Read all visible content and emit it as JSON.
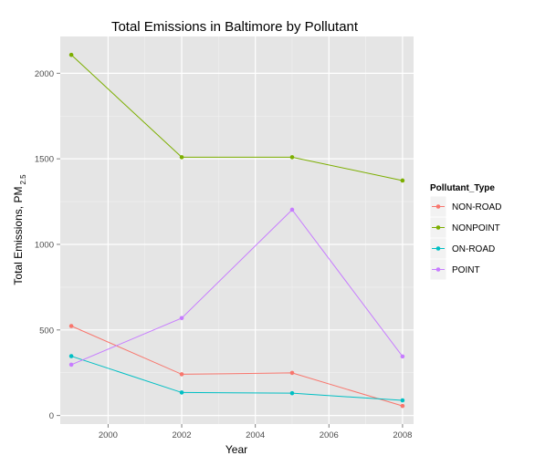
{
  "colors": {
    "panel": "#e5e5e5",
    "grid_major": "#ffffff",
    "grid_minor": "#f2f2f2",
    "legend_key_bg": "#f2f2f2"
  },
  "chart_data": {
    "type": "line",
    "title": "Total Emissions in Baltimore by Pollutant",
    "xlabel": "Year",
    "ylabel": "Total Emissions, PM",
    "ylabel_subscript": "2.5",
    "x": [
      1999,
      2002,
      2005,
      2008
    ],
    "xlim": [
      1998.7,
      2008.3
    ],
    "ylim": [
      -50,
      2215
    ],
    "x_ticks": [
      2000,
      2002,
      2004,
      2006,
      2008
    ],
    "x_tick_labels": [
      "2000",
      "2002",
      "2004",
      "2006",
      "2008"
    ],
    "y_ticks": [
      0,
      500,
      1000,
      1500,
      2000
    ],
    "y_tick_labels": [
      "0",
      "500",
      "1000",
      "1500",
      "2000"
    ],
    "grid": true,
    "legend_title": "Pollutant_Type",
    "legend_position": "right",
    "series": [
      {
        "name": "NON-ROAD",
        "color": "#F8766D",
        "values": [
          522.94,
          240.85,
          248.93,
          55.82
        ]
      },
      {
        "name": "NONPOINT",
        "color": "#7CAE00",
        "values": [
          2107.63,
          1509.5,
          1509.5,
          1373.21
        ]
      },
      {
        "name": "ON-ROAD",
        "color": "#00BFC4",
        "values": [
          346.82,
          134.31,
          130.43,
          88.28
        ]
      },
      {
        "name": "POINT",
        "color": "#C77CFF",
        "values": [
          296.8,
          569.26,
          1202.49,
          344.98
        ]
      }
    ]
  }
}
